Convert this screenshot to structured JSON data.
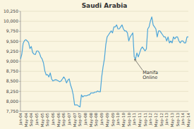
{
  "chart_data": {
    "type": "line",
    "title": "Saudi Arabia",
    "color": "#4da6d9",
    "grid": true,
    "ylim": [
      7750,
      10250
    ],
    "yticks": [
      {
        "value": 7750,
        "label": "7,750"
      },
      {
        "value": 8000,
        "label": "8,000"
      },
      {
        "value": 8250,
        "label": "8,250"
      },
      {
        "value": 8500,
        "label": "8,500"
      },
      {
        "value": 8750,
        "label": "8,750"
      },
      {
        "value": 9000,
        "label": "9,000"
      },
      {
        "value": 9250,
        "label": "9,250"
      },
      {
        "value": 9500,
        "label": "9,500"
      },
      {
        "value": 9750,
        "label": "9,750"
      },
      {
        "value": 10000,
        "label": "10,000"
      },
      {
        "value": 10250,
        "label": "10,250"
      }
    ],
    "annotations": [
      {
        "text": "Manifa\nOnline",
        "x": 84
      }
    ],
    "categories": [
      "Jan-04",
      null,
      null,
      null,
      "May-04",
      null,
      null,
      null,
      "Sep-04",
      null,
      null,
      null,
      "Jan-05",
      null,
      null,
      null,
      "May-05",
      null,
      null,
      null,
      "Sep-05",
      null,
      null,
      null,
      "Jan-06",
      null,
      null,
      null,
      "May-06",
      null,
      null,
      null,
      "Sep-06",
      null,
      null,
      null,
      "Jan-07",
      null,
      null,
      null,
      "May-07",
      null,
      null,
      null,
      "Sep-07",
      null,
      null,
      null,
      "Jan-08",
      null,
      null,
      null,
      "May-08",
      null,
      null,
      null,
      "Sep-08",
      null,
      null,
      null,
      "Jan-09",
      null,
      null,
      null,
      "May-09",
      null,
      null,
      null,
      "Sep-09",
      null,
      null,
      null,
      "Jan-10",
      null,
      null,
      null,
      "May-10",
      null,
      null,
      null,
      "Sep-10",
      null,
      null,
      null,
      "Jan-11",
      null,
      null,
      null,
      "May-11",
      null,
      null,
      null,
      "Sep-11",
      null,
      null,
      null,
      "Jan-12",
      null,
      null,
      null,
      "May-12",
      null,
      null,
      null,
      "Sep-12",
      null,
      null,
      null,
      "Jan-13",
      null,
      null,
      null,
      "May-13",
      null,
      null,
      null,
      "Sep-13",
      null,
      null,
      null,
      "Jan-14",
      null,
      null,
      null,
      "May-14"
    ],
    "values": [
      9050,
      9180,
      9450,
      9520,
      9540,
      9510,
      9470,
      9320,
      9370,
      9220,
      9180,
      9170,
      9260,
      9260,
      9210,
      9110,
      9060,
      8960,
      8760,
      8660,
      8670,
      8610,
      8710,
      8560,
      8510,
      8530,
      8540,
      8530,
      8510,
      8490,
      8510,
      8560,
      8610,
      8560,
      8460,
      8530,
      8560,
      8410,
      8310,
      8160,
      7910,
      7910,
      7910,
      7880,
      7860,
      8160,
      8110,
      8140,
      8140,
      8140,
      8160,
      8160,
      8210,
      8210,
      8210,
      8230,
      8230,
      8260,
      8240,
      8240,
      8610,
      8860,
      9060,
      9410,
      9610,
      9660,
      9710,
      9760,
      9710,
      9860,
      9860,
      9910,
      9810,
      9810,
      9860,
      9910,
      9810,
      9760,
      9760,
      9710,
      9510,
      9610,
      9660,
      9710,
      9110,
      9060,
      9210,
      9110,
      9210,
      9310,
      9360,
      9310,
      9260,
      9310,
      9810,
      9860,
      10010,
      10110,
      9910,
      9860,
      9810,
      9610,
      9760,
      9760,
      9710,
      9660,
      9610,
      9610,
      9510,
      9610,
      9460,
      9510,
      9460,
      9610,
      9560,
      9610,
      9610,
      9510,
      9460,
      9510,
      9510,
      9460,
      9460,
      9610,
      9610
    ]
  }
}
